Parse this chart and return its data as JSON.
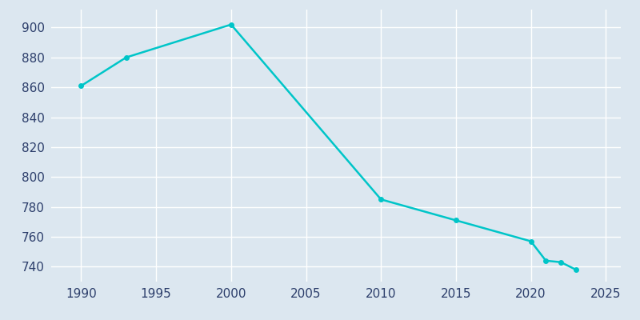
{
  "years": [
    1990,
    1993,
    2000,
    2010,
    2015,
    2020,
    2021,
    2022,
    2023
  ],
  "population": [
    861,
    880,
    902,
    785,
    771,
    757,
    744,
    743,
    738
  ],
  "line_color": "#00c5c8",
  "marker_color": "#00c5c8",
  "bg_color": "#dce7f0",
  "plot_bg_color": "#dce7f0",
  "grid_color": "#ffffff",
  "tick_color": "#2c3e6b",
  "xlim": [
    1988,
    2026
  ],
  "ylim": [
    730,
    912
  ],
  "xticks": [
    1990,
    1995,
    2000,
    2005,
    2010,
    2015,
    2020,
    2025
  ],
  "yticks": [
    740,
    760,
    780,
    800,
    820,
    840,
    860,
    880,
    900
  ],
  "line_width": 1.8,
  "marker_size": 4
}
